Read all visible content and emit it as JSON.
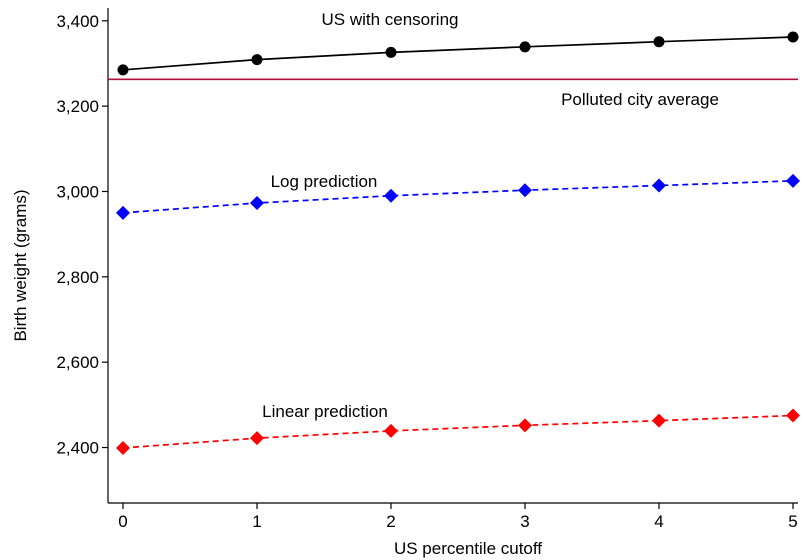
{
  "chart_data": {
    "type": "line",
    "title": "",
    "xlabel": "US percentile cutoff",
    "ylabel": "Birth weight (grams)",
    "x": [
      0,
      1,
      2,
      3,
      4,
      5
    ],
    "xlim": [
      0,
      5
    ],
    "ylim": [
      2270,
      3430
    ],
    "xticks": [
      0,
      1,
      2,
      3,
      4,
      5
    ],
    "yticks": [
      2400,
      2600,
      2800,
      3000,
      3200,
      3400
    ],
    "ytick_labels": [
      "2,400",
      "2,600",
      "2,800",
      "3,000",
      "3,200",
      "3,400"
    ],
    "grid": false,
    "legend": "none",
    "series": [
      {
        "key": "censoring",
        "label": "US with censoring",
        "values": [
          3285,
          3309,
          3326,
          3339,
          3351,
          3362
        ],
        "color": "#000000",
        "marker": "circle",
        "line_style": "solid"
      },
      {
        "key": "log",
        "label": "Log prediction",
        "values": [
          2950,
          2973,
          2990,
          3003,
          3014,
          3025
        ],
        "color": "#0000ff",
        "marker": "diamond",
        "line_style": "dashed"
      },
      {
        "key": "linear",
        "label": "Linear prediction",
        "values": [
          2399,
          2422,
          2439,
          2452,
          2463,
          2475
        ],
        "color": "#ff0000",
        "marker": "diamond",
        "line_style": "dashed"
      }
    ],
    "reference_line": {
      "label": "Polluted city average",
      "value": 3263,
      "color": "#b0103a"
    }
  }
}
